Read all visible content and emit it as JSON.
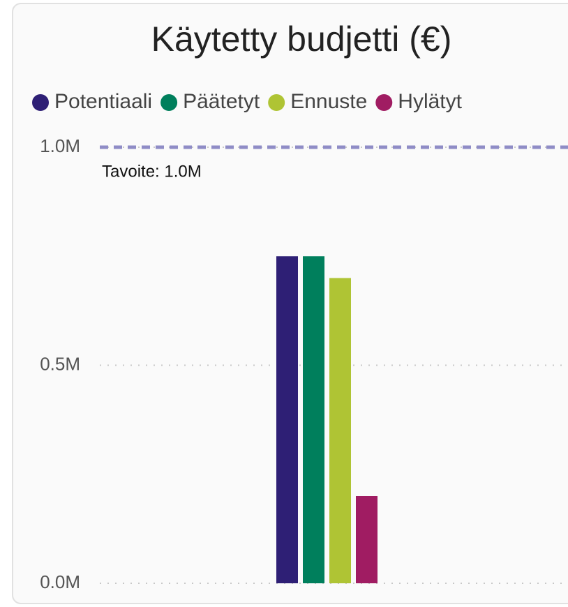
{
  "chart_data": {
    "type": "bar",
    "title": "Käytetty budjetti (€)",
    "categories": [
      null
    ],
    "series": [
      {
        "name": "Potentiaali",
        "color": "#2e1f75",
        "values": [
          750000
        ]
      },
      {
        "name": "Päätetyt",
        "color": "#007f5c",
        "values": [
          750000
        ]
      },
      {
        "name": "Ennuste",
        "color": "#afc434",
        "values": [
          700000
        ]
      },
      {
        "name": "Hylätyt",
        "color": "#a01c62",
        "values": [
          200000
        ]
      }
    ],
    "ylim": [
      0,
      1000000
    ],
    "yticks": [
      {
        "value": 0,
        "label": "0.0M"
      },
      {
        "value": 500000,
        "label": "0.5M"
      },
      {
        "value": 1000000,
        "label": "1.0M"
      }
    ],
    "grid": true,
    "legend": "top",
    "target": {
      "value": 1000000,
      "label": "Tavoite: 1.0M",
      "color": "#8f8cc6"
    }
  }
}
